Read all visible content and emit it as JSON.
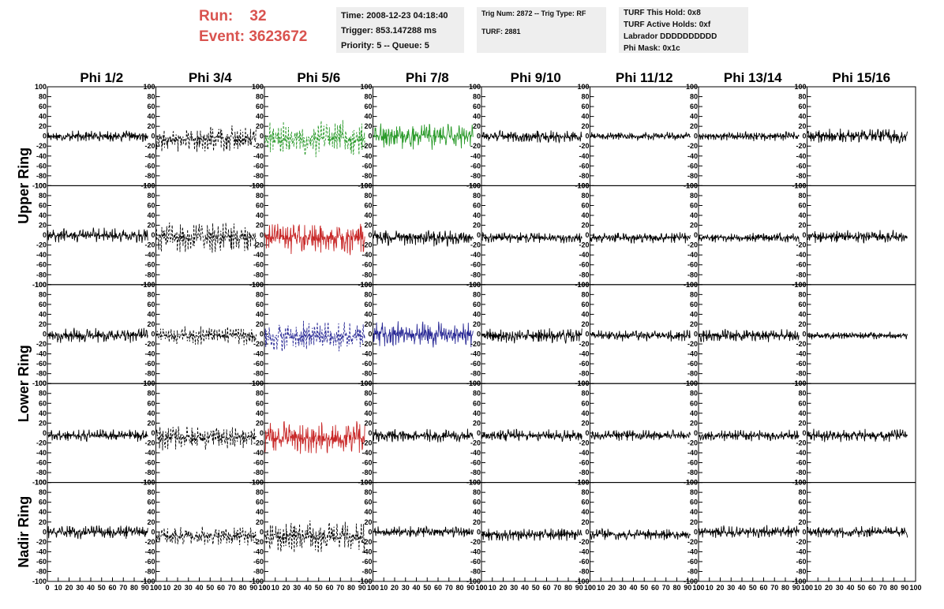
{
  "header": {
    "run_label": "Run:",
    "run_value": "32",
    "event_label": "Event:",
    "event_value": "3623672",
    "time": "Time: 2008-12-23 04:18:40",
    "trigger": "Trigger: 853.147288 ms",
    "priority": "Priority: 5 -- Queue: 5",
    "trig": "Trig Num: 2872 -- Trig Type: RF",
    "turf": "TURF: 2881",
    "turf_hold": "TURF This Hold: 0x8",
    "turf_active": "TURF Active Holds: 0xf",
    "labrador": "Labrador DDDDDDDDDD",
    "phi_mask": "Phi Mask: 0x1c"
  },
  "columns": [
    "Phi 1/2",
    "Phi 3/4",
    "Phi 5/6",
    "Phi 7/8",
    "Phi 9/10",
    "Phi 11/12",
    "Phi 13/14",
    "Phi 15/16"
  ],
  "rings": [
    "Upper Ring",
    "Lower Ring",
    "Nadir Ring"
  ],
  "colors": {
    "green": "#2a9a2a",
    "red": "#c82828",
    "blue": "#2a2a96",
    "black": "#000000"
  },
  "chart_data": {
    "type": "line",
    "xlim": [
      0,
      100
    ],
    "ylim": [
      -100,
      100
    ],
    "x_ticks": [
      0,
      10,
      20,
      30,
      40,
      50,
      60,
      70,
      80,
      90,
      100
    ],
    "y_ticks": [
      -100,
      -80,
      -60,
      -40,
      -20,
      0,
      20,
      40,
      60,
      80,
      100
    ],
    "panel_rows": 5,
    "panel_cols": 8,
    "panels": [
      {
        "row": 0,
        "col": 0,
        "style": "solid",
        "color": "black",
        "amp": 12,
        "offset": 0
      },
      {
        "row": 0,
        "col": 1,
        "style": "dashed",
        "color": "black",
        "amp": 28,
        "offset": -5
      },
      {
        "row": 0,
        "col": 2,
        "style": "dashed",
        "color": "green",
        "amp": 38,
        "offset": -5
      },
      {
        "row": 0,
        "col": 3,
        "style": "solid",
        "color": "green",
        "amp": 28,
        "offset": 0
      },
      {
        "row": 0,
        "col": 4,
        "style": "solid",
        "color": "black",
        "amp": 14,
        "offset": 0
      },
      {
        "row": 0,
        "col": 5,
        "style": "solid",
        "color": "black",
        "amp": 9,
        "offset": 0
      },
      {
        "row": 0,
        "col": 6,
        "style": "solid",
        "color": "black",
        "amp": 10,
        "offset": 0
      },
      {
        "row": 0,
        "col": 7,
        "style": "solid",
        "color": "black",
        "amp": 16,
        "offset": 0
      },
      {
        "row": 1,
        "col": 0,
        "style": "solid",
        "color": "black",
        "amp": 16,
        "offset": 0
      },
      {
        "row": 1,
        "col": 1,
        "style": "dashed",
        "color": "black",
        "amp": 32,
        "offset": -5
      },
      {
        "row": 1,
        "col": 2,
        "style": "solid",
        "color": "red",
        "amp": 36,
        "offset": -5
      },
      {
        "row": 1,
        "col": 3,
        "style": "solid",
        "color": "black",
        "amp": 18,
        "offset": -5
      },
      {
        "row": 1,
        "col": 4,
        "style": "solid",
        "color": "black",
        "amp": 12,
        "offset": -5
      },
      {
        "row": 1,
        "col": 5,
        "style": "solid",
        "color": "black",
        "amp": 12,
        "offset": -5
      },
      {
        "row": 1,
        "col": 6,
        "style": "solid",
        "color": "black",
        "amp": 10,
        "offset": -5
      },
      {
        "row": 1,
        "col": 7,
        "style": "solid",
        "color": "black",
        "amp": 14,
        "offset": -3
      },
      {
        "row": 2,
        "col": 0,
        "style": "solid",
        "color": "black",
        "amp": 16,
        "offset": -3
      },
      {
        "row": 2,
        "col": 1,
        "style": "dashed",
        "color": "black",
        "amp": 20,
        "offset": -3
      },
      {
        "row": 2,
        "col": 2,
        "style": "dashed",
        "color": "blue",
        "amp": 34,
        "offset": -5
      },
      {
        "row": 2,
        "col": 3,
        "style": "solid",
        "color": "blue",
        "amp": 28,
        "offset": 0
      },
      {
        "row": 2,
        "col": 4,
        "style": "solid",
        "color": "black",
        "amp": 16,
        "offset": -3
      },
      {
        "row": 2,
        "col": 5,
        "style": "solid",
        "color": "black",
        "amp": 12,
        "offset": -3
      },
      {
        "row": 2,
        "col": 6,
        "style": "solid",
        "color": "black",
        "amp": 14,
        "offset": -3
      },
      {
        "row": 2,
        "col": 7,
        "style": "solid",
        "color": "black",
        "amp": 8,
        "offset": -3
      },
      {
        "row": 3,
        "col": 0,
        "style": "solid",
        "color": "black",
        "amp": 13,
        "offset": -5
      },
      {
        "row": 3,
        "col": 1,
        "style": "dashed",
        "color": "black",
        "amp": 26,
        "offset": -10
      },
      {
        "row": 3,
        "col": 2,
        "style": "solid",
        "color": "red",
        "amp": 35,
        "offset": -10
      },
      {
        "row": 3,
        "col": 3,
        "style": "solid",
        "color": "black",
        "amp": 14,
        "offset": -5
      },
      {
        "row": 3,
        "col": 4,
        "style": "solid",
        "color": "black",
        "amp": 14,
        "offset": -5
      },
      {
        "row": 3,
        "col": 5,
        "style": "solid",
        "color": "black",
        "amp": 12,
        "offset": -5
      },
      {
        "row": 3,
        "col": 6,
        "style": "solid",
        "color": "black",
        "amp": 12,
        "offset": -5
      },
      {
        "row": 3,
        "col": 7,
        "style": "solid",
        "color": "black",
        "amp": 14,
        "offset": -5
      },
      {
        "row": 4,
        "col": 0,
        "style": "solid",
        "color": "black",
        "amp": 15,
        "offset": 0
      },
      {
        "row": 4,
        "col": 1,
        "style": "dashed",
        "color": "black",
        "amp": 20,
        "offset": -8
      },
      {
        "row": 4,
        "col": 2,
        "style": "dashed",
        "color": "black",
        "amp": 35,
        "offset": -10
      },
      {
        "row": 4,
        "col": 3,
        "style": "solid",
        "color": "black",
        "amp": 12,
        "offset": 0
      },
      {
        "row": 4,
        "col": 4,
        "style": "solid",
        "color": "black",
        "amp": 14,
        "offset": -5
      },
      {
        "row": 4,
        "col": 5,
        "style": "solid",
        "color": "black",
        "amp": 12,
        "offset": -5
      },
      {
        "row": 4,
        "col": 6,
        "style": "solid",
        "color": "black",
        "amp": 14,
        "offset": 0
      },
      {
        "row": 4,
        "col": 7,
        "style": "solid",
        "color": "black",
        "amp": 12,
        "offset": 0
      }
    ]
  }
}
